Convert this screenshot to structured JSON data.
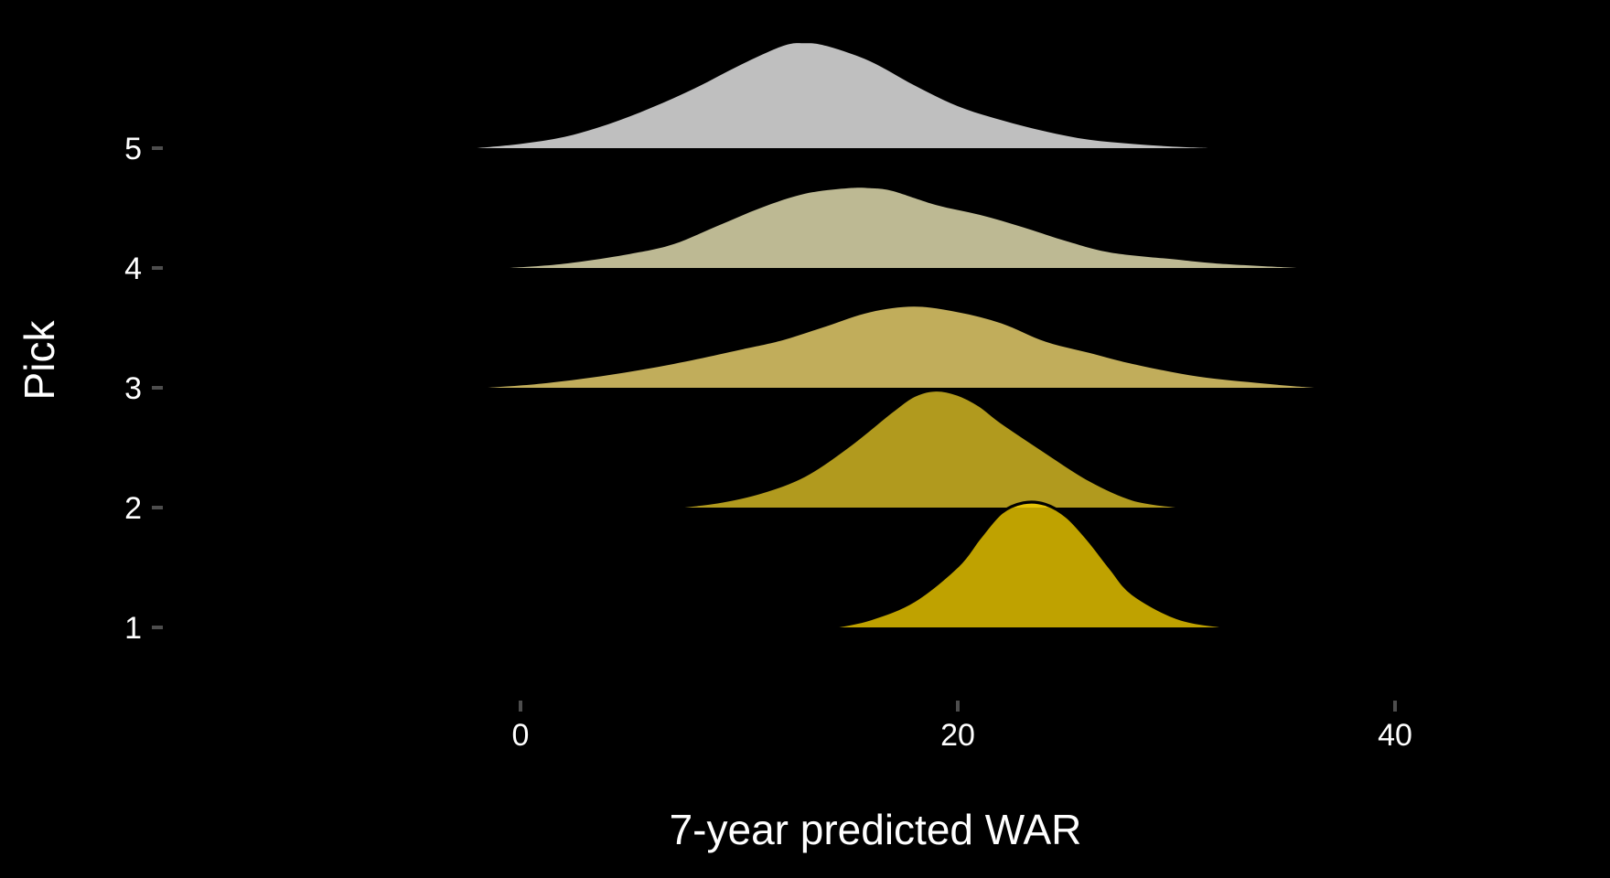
{
  "chart_data": {
    "type": "ridgeline",
    "title": "",
    "xlabel": "7-year predicted WAR",
    "ylabel": "Pick",
    "xlim": [
      -14.5,
      49.2
    ],
    "x_ticks": [
      0,
      20,
      40
    ],
    "x_tick_labels": [
      "0",
      "20",
      "40"
    ],
    "y_ticks": [
      1,
      2,
      3,
      4,
      5
    ],
    "y_tick_labels": [
      "1",
      "2",
      "3",
      "4",
      "5"
    ],
    "grid": false,
    "legend": "none",
    "background": "#000000",
    "series": [
      {
        "pick": 5,
        "fill": "#bfbfbf",
        "opacity": 1.0,
        "outlined": false,
        "density": [
          [
            -2.0,
            0.0
          ],
          [
            0.0,
            0.03
          ],
          [
            2.0,
            0.08
          ],
          [
            4.0,
            0.17
          ],
          [
            6.0,
            0.29
          ],
          [
            8.0,
            0.43
          ],
          [
            10.0,
            0.59
          ],
          [
            12.0,
            0.73
          ],
          [
            13.0,
            0.75
          ],
          [
            14.0,
            0.73
          ],
          [
            16.0,
            0.62
          ],
          [
            18.0,
            0.45
          ],
          [
            20.0,
            0.3
          ],
          [
            22.0,
            0.2
          ],
          [
            24.0,
            0.12
          ],
          [
            26.0,
            0.06
          ],
          [
            28.0,
            0.03
          ],
          [
            30.0,
            0.01
          ],
          [
            31.5,
            0.0
          ]
        ]
      },
      {
        "pick": 4,
        "fill": "#bdb993",
        "opacity": 1.0,
        "outlined": false,
        "density": [
          [
            -0.5,
            0.0
          ],
          [
            2.0,
            0.03
          ],
          [
            5.0,
            0.1
          ],
          [
            7.0,
            0.17
          ],
          [
            9.0,
            0.3
          ],
          [
            11.0,
            0.43
          ],
          [
            13.0,
            0.53
          ],
          [
            15.0,
            0.57
          ],
          [
            16.0,
            0.57
          ],
          [
            17.0,
            0.55
          ],
          [
            19.0,
            0.45
          ],
          [
            21.0,
            0.38
          ],
          [
            23.0,
            0.29
          ],
          [
            25.0,
            0.19
          ],
          [
            27.0,
            0.11
          ],
          [
            30.0,
            0.06
          ],
          [
            32.0,
            0.03
          ],
          [
            35.5,
            0.0
          ]
        ]
      },
      {
        "pick": 3,
        "fill": "#c1ad5b",
        "opacity": 1.0,
        "outlined": false,
        "density": [
          [
            -1.5,
            0.0
          ],
          [
            1.0,
            0.03
          ],
          [
            4.0,
            0.09
          ],
          [
            7.0,
            0.17
          ],
          [
            10.0,
            0.27
          ],
          [
            12.0,
            0.34
          ],
          [
            14.0,
            0.44
          ],
          [
            16.0,
            0.54
          ],
          [
            18.0,
            0.58
          ],
          [
            20.0,
            0.54
          ],
          [
            22.0,
            0.46
          ],
          [
            24.0,
            0.33
          ],
          [
            26.0,
            0.25
          ],
          [
            28.0,
            0.17
          ],
          [
            31.0,
            0.08
          ],
          [
            34.0,
            0.03
          ],
          [
            36.3,
            0.0
          ]
        ]
      },
      {
        "pick": 2,
        "fill": "#f5d529",
        "opacity": 0.72,
        "outlined": true,
        "density": [
          [
            6.8,
            0.0
          ],
          [
            9.0,
            0.04
          ],
          [
            11.0,
            0.11
          ],
          [
            13.0,
            0.23
          ],
          [
            15.0,
            0.44
          ],
          [
            17.0,
            0.69
          ],
          [
            18.0,
            0.8
          ],
          [
            19.0,
            0.84
          ],
          [
            20.0,
            0.81
          ],
          [
            21.0,
            0.73
          ],
          [
            22.0,
            0.61
          ],
          [
            24.0,
            0.4
          ],
          [
            26.0,
            0.2
          ],
          [
            28.0,
            0.06
          ],
          [
            30.0,
            0.01
          ],
          [
            30.8,
            0.0
          ]
        ]
      },
      {
        "pick": 1,
        "fill": "#f5d000",
        "opacity": 0.78,
        "outlined": true,
        "density": [
          [
            14.2,
            0.0
          ],
          [
            16.0,
            0.06
          ],
          [
            18.0,
            0.19
          ],
          [
            20.0,
            0.44
          ],
          [
            21.0,
            0.64
          ],
          [
            22.0,
            0.82
          ],
          [
            23.0,
            0.89
          ],
          [
            24.0,
            0.88
          ],
          [
            25.0,
            0.79
          ],
          [
            26.0,
            0.62
          ],
          [
            27.0,
            0.42
          ],
          [
            28.0,
            0.24
          ],
          [
            30.0,
            0.07
          ],
          [
            32.0,
            0.01
          ],
          [
            33.3,
            0.0
          ]
        ]
      }
    ]
  }
}
